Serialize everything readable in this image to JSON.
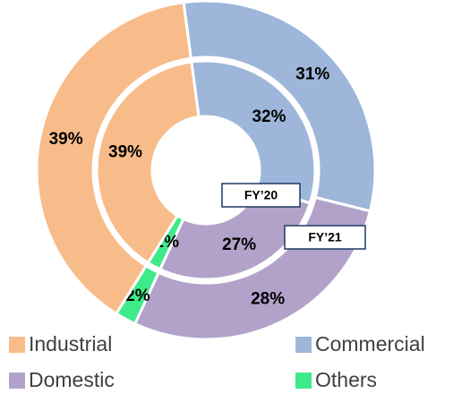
{
  "chart_data": {
    "type": "donut",
    "categories": [
      "Commercial",
      "Domestic",
      "Others",
      "Industrial"
    ],
    "colors": [
      "#9db6da",
      "#b2a2ca",
      "#3deb8a",
      "#f8bc8a"
    ],
    "series": [
      {
        "name": "FY’20",
        "values": [
          32,
          27,
          2,
          39
        ],
        "value_labels": [
          "32%",
          "27%",
          "2%",
          "39%"
        ]
      },
      {
        "name": "FY’21",
        "values": [
          31,
          28,
          2,
          39
        ],
        "value_labels": [
          "31%",
          "28%",
          "2%",
          "39%"
        ]
      }
    ],
    "legend": "bottom"
  }
}
